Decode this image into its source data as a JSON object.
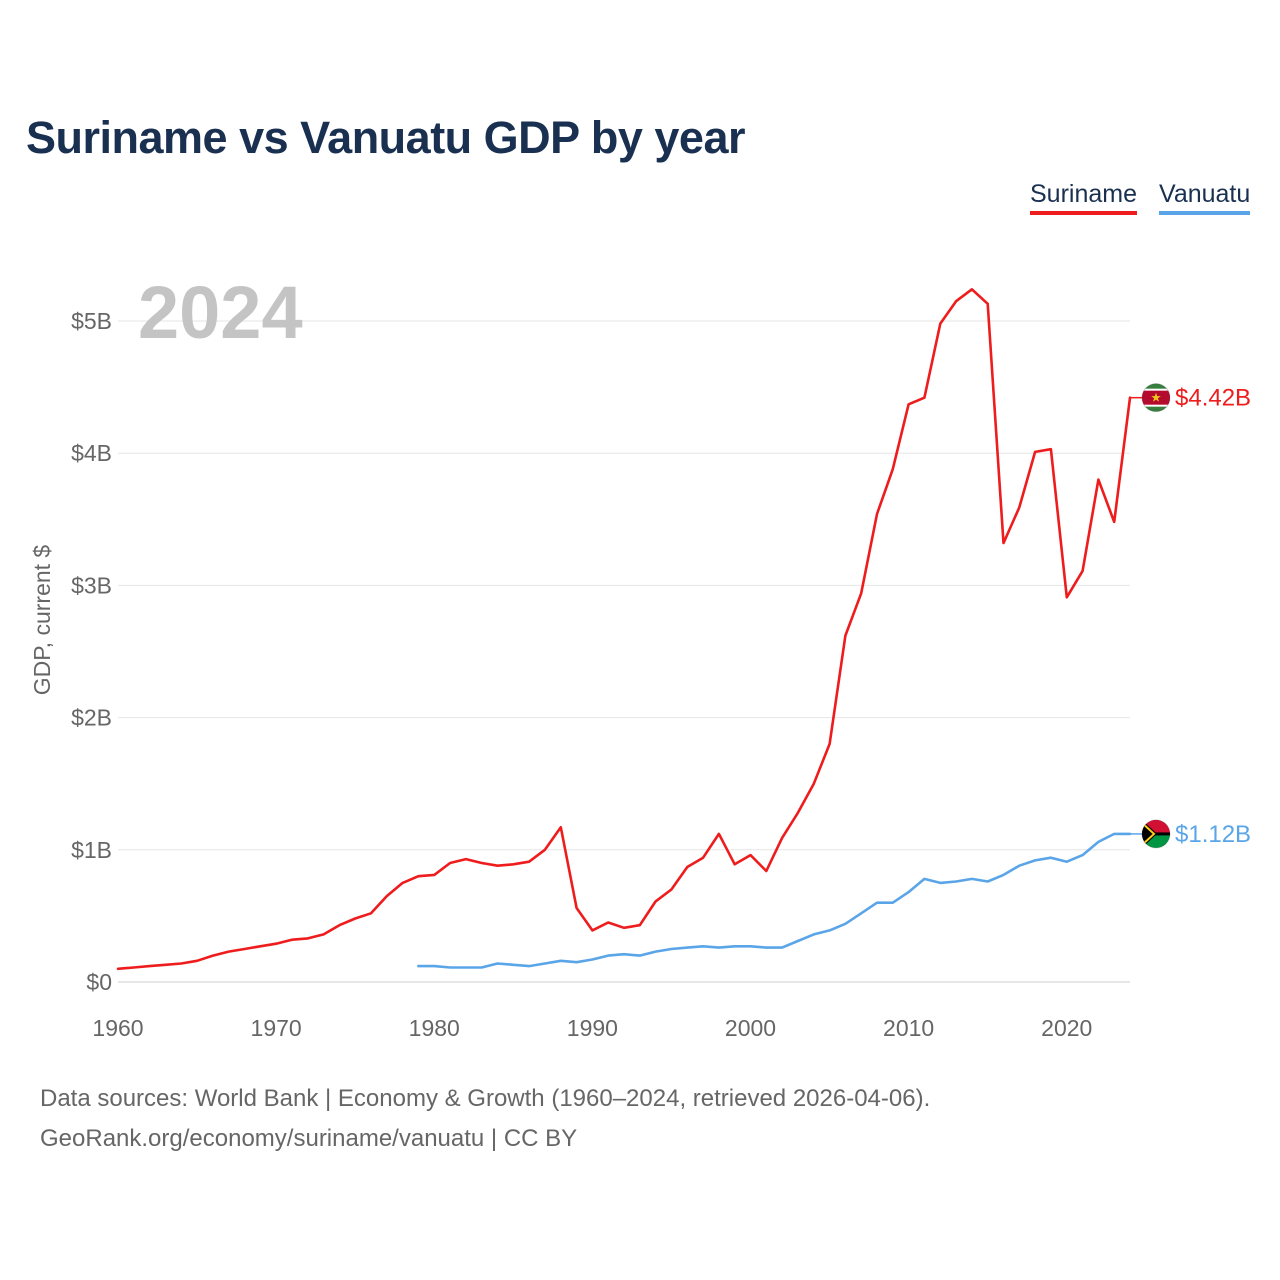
{
  "chart_data": {
    "type": "line",
    "title": "Suriname vs Vanuatu GDP by year",
    "ylabel": "GDP, current $",
    "xlabel": "",
    "year_label": "2024",
    "xlim": [
      1960,
      2024
    ],
    "ylim": [
      0,
      5000000000
    ],
    "x_ticks": [
      1960,
      1970,
      1980,
      1990,
      2000,
      2010,
      2020
    ],
    "x_tick_labels": [
      "1960",
      "1970",
      "1980",
      "1990",
      "2000",
      "2010",
      "2020"
    ],
    "y_ticks": [
      0,
      1000000000,
      2000000000,
      3000000000,
      4000000000,
      5000000000
    ],
    "y_tick_labels": [
      "$0",
      "$1B",
      "$2B",
      "$3B",
      "$4B",
      "$5B"
    ],
    "grid": true,
    "legend_position": "top-right",
    "series": [
      {
        "name": "Suriname",
        "color": "#ee1c1c",
        "end_label": "$4.42B",
        "flag_icon": "suriname-flag-icon",
        "x": [
          1960,
          1961,
          1962,
          1963,
          1964,
          1965,
          1966,
          1967,
          1968,
          1969,
          1970,
          1971,
          1972,
          1973,
          1974,
          1975,
          1976,
          1977,
          1978,
          1979,
          1980,
          1981,
          1982,
          1983,
          1984,
          1985,
          1986,
          1987,
          1988,
          1989,
          1990,
          1991,
          1992,
          1993,
          1994,
          1995,
          1996,
          1997,
          1998,
          1999,
          2000,
          2001,
          2002,
          2003,
          2004,
          2005,
          2006,
          2007,
          2008,
          2009,
          2010,
          2011,
          2012,
          2013,
          2014,
          2015,
          2016,
          2017,
          2018,
          2019,
          2020,
          2021,
          2022,
          2023,
          2024
        ],
        "values": [
          0.1,
          0.11,
          0.12,
          0.13,
          0.14,
          0.16,
          0.2,
          0.23,
          0.25,
          0.27,
          0.29,
          0.32,
          0.33,
          0.36,
          0.43,
          0.48,
          0.52,
          0.65,
          0.75,
          0.8,
          0.81,
          0.9,
          0.93,
          0.9,
          0.88,
          0.89,
          0.91,
          1.0,
          1.17,
          0.56,
          0.39,
          0.45,
          0.41,
          0.43,
          0.61,
          0.7,
          0.87,
          0.94,
          1.12,
          0.89,
          0.96,
          0.84,
          1.09,
          1.28,
          1.5,
          1.8,
          2.62,
          2.94,
          3.54,
          3.88,
          4.37,
          4.42,
          4.98,
          5.15,
          5.24,
          5.13,
          3.32,
          3.59,
          4.01,
          4.03,
          2.91,
          3.11,
          3.8,
          3.48,
          4.42
        ]
      },
      {
        "name": "Vanuatu",
        "color": "#5aa5e8",
        "end_label": "$1.12B",
        "flag_icon": "vanuatu-flag-icon",
        "x": [
          1979,
          1980,
          1981,
          1982,
          1983,
          1984,
          1985,
          1986,
          1987,
          1988,
          1989,
          1990,
          1991,
          1992,
          1993,
          1994,
          1995,
          1996,
          1997,
          1998,
          1999,
          2000,
          2001,
          2002,
          2003,
          2004,
          2005,
          2006,
          2007,
          2008,
          2009,
          2010,
          2011,
          2012,
          2013,
          2014,
          2015,
          2016,
          2017,
          2018,
          2019,
          2020,
          2021,
          2022,
          2023,
          2024
        ],
        "values": [
          0.12,
          0.12,
          0.11,
          0.11,
          0.11,
          0.14,
          0.13,
          0.12,
          0.14,
          0.16,
          0.15,
          0.17,
          0.2,
          0.21,
          0.2,
          0.23,
          0.25,
          0.26,
          0.27,
          0.26,
          0.27,
          0.27,
          0.26,
          0.26,
          0.31,
          0.36,
          0.39,
          0.44,
          0.52,
          0.6,
          0.6,
          0.68,
          0.78,
          0.75,
          0.76,
          0.78,
          0.76,
          0.81,
          0.88,
          0.92,
          0.94,
          0.91,
          0.96,
          1.06,
          1.12,
          1.12
        ]
      }
    ],
    "value_unit": "billions_usd"
  },
  "legend": {
    "suriname": "Suriname",
    "vanuatu": "Vanuatu"
  },
  "footer": {
    "source_line_1": "Data sources: World Bank | Economy & Growth (1960–2024, retrieved 2026-04-06).",
    "source_line_2": "GeoRank.org/economy/suriname/vanuatu | CC BY"
  }
}
